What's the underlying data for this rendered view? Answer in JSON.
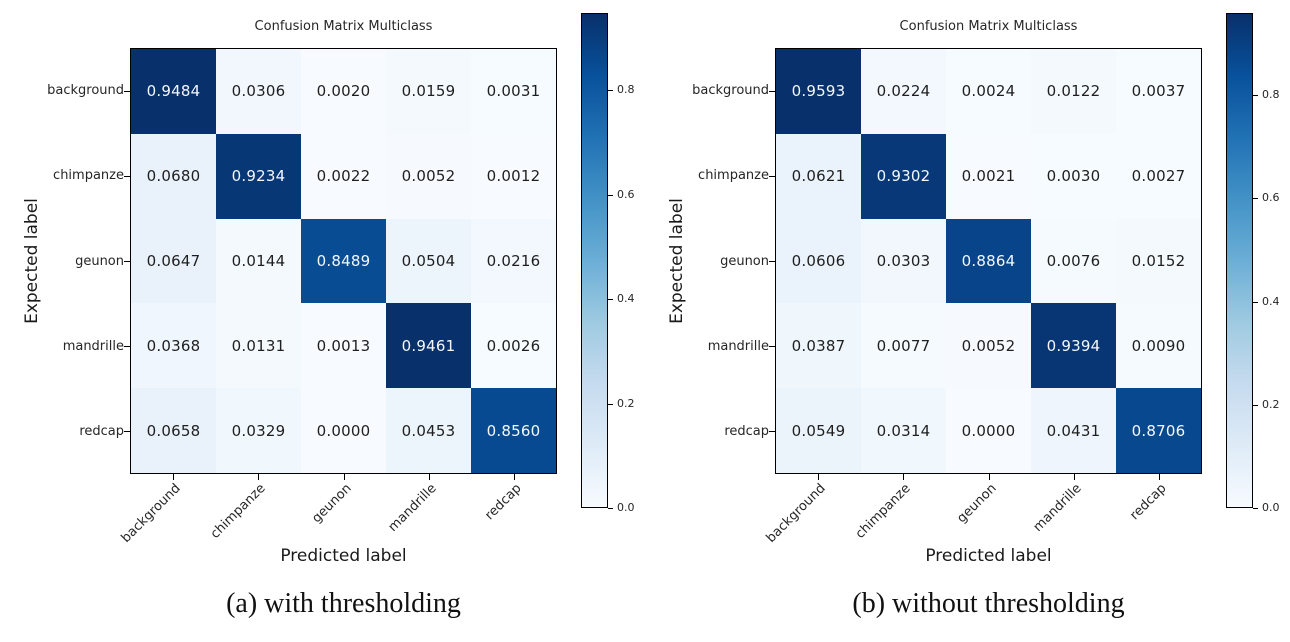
{
  "page": {
    "background": "#ffffff"
  },
  "colors": {
    "colormap_name": "Blues",
    "blues_stops": [
      "#f7fbff",
      "#deebf7",
      "#c6dbef",
      "#9ecae1",
      "#6baed6",
      "#4292c6",
      "#2171b5",
      "#08519c",
      "#08306b"
    ],
    "frame": "#000000",
    "cell_text_dark": "#1f1f1f",
    "cell_text_light": "#f4f8fd",
    "tick_label": "#262626"
  },
  "chart_data": [
    {
      "type": "heatmap",
      "title": "Confusion Matrix Multiclass",
      "xlabel": "Predicted label",
      "ylabel": "Expected label",
      "caption": "(a) with thresholding",
      "categories": [
        "background",
        "chimpanze",
        "geunon",
        "mandrille",
        "redcap"
      ],
      "values": [
        [
          0.9484,
          0.0306,
          0.002,
          0.0159,
          0.0031
        ],
        [
          0.068,
          0.9234,
          0.0022,
          0.0052,
          0.0012
        ],
        [
          0.0647,
          0.0144,
          0.8489,
          0.0504,
          0.0216
        ],
        [
          0.0368,
          0.0131,
          0.0013,
          0.9461,
          0.0026
        ],
        [
          0.0658,
          0.0329,
          0.0,
          0.0453,
          0.856
        ]
      ],
      "value_decimals": 4,
      "vmin": 0.0,
      "vmax": 0.9484,
      "colorbar_ticks": [
        0.0,
        0.2,
        0.4,
        0.6,
        0.8
      ],
      "colorbar_position": "right",
      "grid": false
    },
    {
      "type": "heatmap",
      "title": "Confusion Matrix Multiclass",
      "xlabel": "Predicted label",
      "ylabel": "Expected label",
      "caption": "(b) without thresholding",
      "categories": [
        "background",
        "chimpanze",
        "geunon",
        "mandrille",
        "redcap"
      ],
      "values": [
        [
          0.9593,
          0.0224,
          0.0024,
          0.0122,
          0.0037
        ],
        [
          0.0621,
          0.9302,
          0.0021,
          0.003,
          0.0027
        ],
        [
          0.0606,
          0.0303,
          0.8864,
          0.0076,
          0.0152
        ],
        [
          0.0387,
          0.0077,
          0.0052,
          0.9394,
          0.009
        ],
        [
          0.0549,
          0.0314,
          0.0,
          0.0431,
          0.8706
        ]
      ],
      "value_decimals": 4,
      "vmin": 0.0,
      "vmax": 0.9593,
      "colorbar_ticks": [
        0.0,
        0.2,
        0.4,
        0.6,
        0.8
      ],
      "colorbar_position": "right",
      "grid": false
    }
  ]
}
